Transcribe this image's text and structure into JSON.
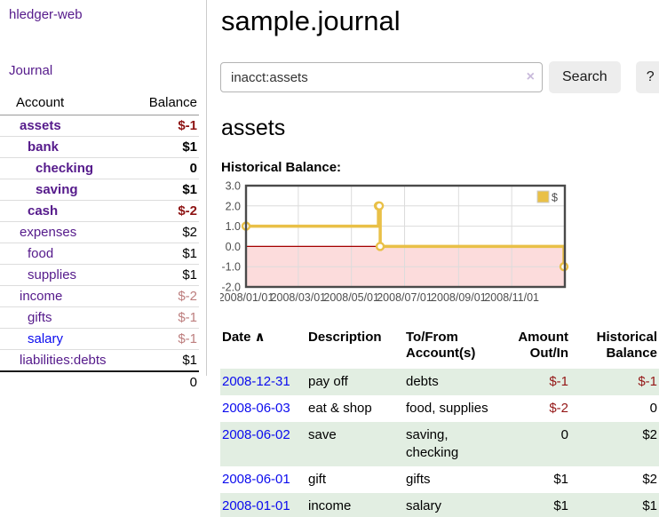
{
  "app": {
    "brand": "hledger-web"
  },
  "nav": {
    "journal": "Journal"
  },
  "sidebar": {
    "header": {
      "account": "Account",
      "balance": "Balance"
    },
    "accounts": [
      {
        "name": "assets",
        "balance": "$-1"
      },
      {
        "name": "bank",
        "balance": "$1"
      },
      {
        "name": "checking",
        "balance": "0"
      },
      {
        "name": "saving",
        "balance": "$1"
      },
      {
        "name": "cash",
        "balance": "$-2"
      },
      {
        "name": "expenses",
        "balance": "$2"
      },
      {
        "name": "food",
        "balance": "$1"
      },
      {
        "name": "supplies",
        "balance": "$1"
      },
      {
        "name": "income",
        "balance": "$-2"
      },
      {
        "name": "gifts",
        "balance": "$-1"
      },
      {
        "name": "salary",
        "balance": "$-1"
      },
      {
        "name": "liabilities:debts",
        "balance": "$1"
      }
    ],
    "total": "0"
  },
  "header": {
    "title": "sample.journal"
  },
  "search": {
    "value": "inacct:assets",
    "clear_icon": "×",
    "search_button": "Search",
    "help_button": "?"
  },
  "account_page": {
    "title": "assets",
    "chart_label": "Historical Balance:"
  },
  "chart_data": {
    "type": "line",
    "step": true,
    "title": "Historical Balance",
    "series": [
      {
        "name": "$",
        "color": "#e9c047",
        "points": [
          [
            "2008-01-01",
            1
          ],
          [
            "2008-06-01",
            2
          ],
          [
            "2008-06-02",
            2
          ],
          [
            "2008-06-03",
            0
          ],
          [
            "2008-12-31",
            -1
          ]
        ]
      }
    ],
    "x_range": [
      "2008-01-01",
      "2009-01-01"
    ],
    "ylim": [
      -2,
      3
    ],
    "y_ticks": [
      "3.0",
      "2.0",
      "1.0",
      "0.0",
      "-1.0",
      "-2.0"
    ],
    "x_ticks": [
      "2008/01/01",
      "2008/03/01",
      "2008/05/01",
      "2008/07/01",
      "2008/09/01",
      "2008/11/01"
    ],
    "negative_region": {
      "from": -2,
      "to": 0,
      "fill": "#fcdcdc",
      "line": "#a40000"
    },
    "legend": [
      "$"
    ],
    "legend_position": "top-right",
    "grid": true
  },
  "register": {
    "columns": [
      "Date",
      "Description",
      "To/From Account(s)",
      "Amount Out/In",
      "Historical Balance"
    ],
    "sort_icon": "∧",
    "rows": [
      {
        "date": "2008-12-31",
        "description": "pay off",
        "accounts": "debts",
        "amount": "$-1",
        "balance": "$-1"
      },
      {
        "date": "2008-06-03",
        "description": "eat & shop",
        "accounts": "food, supplies",
        "amount": "$-2",
        "balance": "0"
      },
      {
        "date": "2008-06-02",
        "description": "save",
        "accounts": "saving, checking",
        "amount": "0",
        "balance": "$2"
      },
      {
        "date": "2008-06-01",
        "description": "gift",
        "accounts": "gifts",
        "amount": "$1",
        "balance": "$2"
      },
      {
        "date": "2008-01-01",
        "description": "income",
        "accounts": "salary",
        "amount": "$1",
        "balance": "$1"
      }
    ]
  },
  "colors": {
    "link_purple": "#551a8b",
    "link_blue": "#0b0bee",
    "negative_strong": "#8e1414",
    "negative_muted": "#bd7e7e",
    "register_negative": "#941616",
    "row_stripe_green": "#e2eee2",
    "chart_gold": "#e9c047",
    "chart_negative_fill": "#fcdcdc",
    "chart_zero_line": "#a40000"
  }
}
